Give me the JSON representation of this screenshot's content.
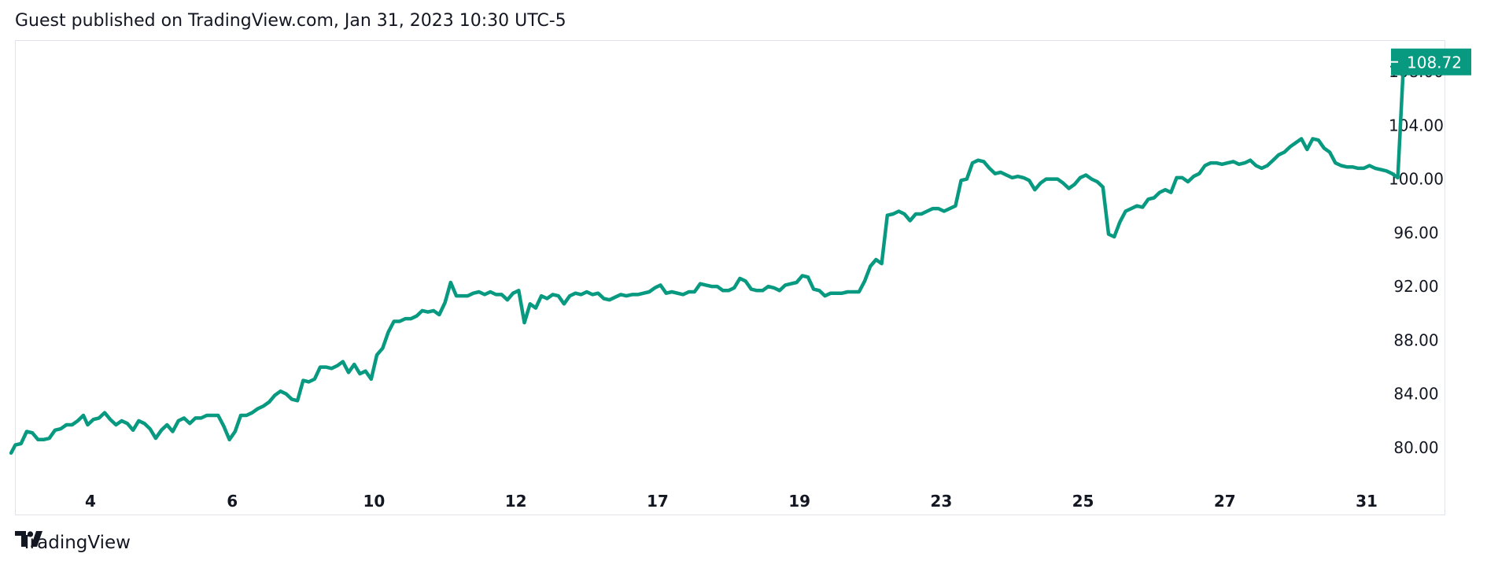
{
  "header": {
    "text": "Guest published on TradingView.com, Jan 31, 2023 10:30 UTC-5"
  },
  "footer": {
    "brand": "TradingView",
    "logo_icon": "tradingview-logo-icon"
  },
  "colors": {
    "line": "#089981",
    "price_label_bg": "#089981",
    "border": "#e0e3eb",
    "text": "#131722"
  },
  "chart_data": {
    "type": "line",
    "title": "",
    "xlabel": "",
    "ylabel": "",
    "ylim": [
      77.5,
      110
    ],
    "y_ticks": [
      "80.00",
      "84.00",
      "88.00",
      "92.00",
      "96.00",
      "100.00",
      "104.00",
      "108.00"
    ],
    "x_ticks": [
      {
        "label": "4",
        "x": 9
      },
      {
        "label": "6",
        "x": 19
      },
      {
        "label": "10",
        "x": 29
      },
      {
        "label": "12",
        "x": 39
      },
      {
        "label": "17",
        "x": 49
      },
      {
        "label": "19",
        "x": 59
      },
      {
        "label": "23",
        "x": 69
      },
      {
        "label": "25",
        "x": 79
      },
      {
        "label": "27",
        "x": 89
      },
      {
        "label": "31",
        "x": 99
      }
    ],
    "last_price": "108.72",
    "series": [
      {
        "values": [
          [
            3.4,
            79.6
          ],
          [
            3.7,
            80.2
          ],
          [
            4.1,
            80.3
          ],
          [
            4.5,
            81.2
          ],
          [
            4.9,
            81.1
          ],
          [
            5.3,
            80.6
          ],
          [
            5.7,
            80.6
          ],
          [
            6.1,
            80.7
          ],
          [
            6.5,
            81.3
          ],
          [
            6.9,
            81.4
          ],
          [
            7.3,
            81.7
          ],
          [
            7.7,
            81.7
          ],
          [
            8.1,
            82.0
          ],
          [
            8.5,
            82.4
          ],
          [
            8.8,
            81.7
          ],
          [
            9.2,
            82.1
          ],
          [
            9.6,
            82.2
          ],
          [
            10.0,
            82.6
          ],
          [
            10.4,
            82.1
          ],
          [
            10.8,
            81.7
          ],
          [
            11.2,
            82.0
          ],
          [
            11.6,
            81.8
          ],
          [
            12.0,
            81.3
          ],
          [
            12.4,
            82.0
          ],
          [
            12.8,
            81.8
          ],
          [
            13.2,
            81.4
          ],
          [
            13.6,
            80.7
          ],
          [
            14.0,
            81.3
          ],
          [
            14.4,
            81.7
          ],
          [
            14.8,
            81.2
          ],
          [
            15.2,
            82.0
          ],
          [
            15.6,
            82.2
          ],
          [
            16.0,
            81.8
          ],
          [
            16.4,
            82.2
          ],
          [
            16.8,
            82.2
          ],
          [
            17.2,
            82.4
          ],
          [
            17.6,
            82.4
          ],
          [
            18.0,
            82.4
          ],
          [
            18.4,
            81.6
          ],
          [
            18.8,
            80.6
          ],
          [
            19.2,
            81.2
          ],
          [
            19.6,
            82.4
          ],
          [
            20.0,
            82.4
          ],
          [
            20.4,
            82.6
          ],
          [
            20.8,
            82.9
          ],
          [
            21.2,
            83.1
          ],
          [
            21.6,
            83.4
          ],
          [
            22.0,
            83.9
          ],
          [
            22.4,
            84.2
          ],
          [
            22.8,
            84.0
          ],
          [
            23.2,
            83.6
          ],
          [
            23.6,
            83.5
          ],
          [
            24.0,
            85.0
          ],
          [
            24.4,
            84.9
          ],
          [
            24.8,
            85.1
          ],
          [
            25.2,
            86.0
          ],
          [
            25.6,
            86.0
          ],
          [
            26.0,
            85.9
          ],
          [
            26.4,
            86.1
          ],
          [
            26.8,
            86.4
          ],
          [
            27.2,
            85.6
          ],
          [
            27.6,
            86.2
          ],
          [
            28.0,
            85.5
          ],
          [
            28.4,
            85.7
          ],
          [
            28.8,
            85.1
          ],
          [
            29.2,
            86.9
          ],
          [
            29.6,
            87.4
          ],
          [
            30.0,
            88.6
          ],
          [
            30.4,
            89.4
          ],
          [
            30.8,
            89.4
          ],
          [
            31.2,
            89.6
          ],
          [
            31.6,
            89.6
          ],
          [
            32.0,
            89.8
          ],
          [
            32.4,
            90.2
          ],
          [
            32.8,
            90.1
          ],
          [
            33.2,
            90.2
          ],
          [
            33.6,
            89.9
          ],
          [
            34.0,
            90.8
          ],
          [
            34.4,
            92.3
          ],
          [
            34.8,
            91.3
          ],
          [
            35.2,
            91.3
          ],
          [
            35.6,
            91.3
          ],
          [
            36.0,
            91.5
          ],
          [
            36.4,
            91.6
          ],
          [
            36.8,
            91.4
          ],
          [
            37.2,
            91.6
          ],
          [
            37.6,
            91.4
          ],
          [
            38.0,
            91.4
          ],
          [
            38.4,
            91.0
          ],
          [
            38.8,
            91.5
          ],
          [
            39.2,
            91.7
          ],
          [
            39.6,
            89.3
          ],
          [
            40.0,
            90.7
          ],
          [
            40.4,
            90.4
          ],
          [
            40.8,
            91.3
          ],
          [
            41.2,
            91.1
          ],
          [
            41.6,
            91.4
          ],
          [
            42.0,
            91.3
          ],
          [
            42.4,
            90.7
          ],
          [
            42.8,
            91.3
          ],
          [
            43.2,
            91.5
          ],
          [
            43.6,
            91.4
          ],
          [
            44.0,
            91.6
          ],
          [
            44.4,
            91.4
          ],
          [
            44.8,
            91.5
          ],
          [
            45.2,
            91.1
          ],
          [
            45.6,
            91.0
          ],
          [
            46.0,
            91.2
          ],
          [
            46.4,
            91.4
          ],
          [
            46.8,
            91.3
          ],
          [
            47.2,
            91.4
          ],
          [
            47.6,
            91.4
          ],
          [
            48.0,
            91.5
          ],
          [
            48.4,
            91.6
          ],
          [
            48.8,
            91.9
          ],
          [
            49.2,
            92.1
          ],
          [
            49.6,
            91.5
          ],
          [
            50.0,
            91.6
          ],
          [
            50.4,
            91.5
          ],
          [
            50.8,
            91.4
          ],
          [
            51.2,
            91.6
          ],
          [
            51.6,
            91.6
          ],
          [
            52.0,
            92.2
          ],
          [
            52.4,
            92.1
          ],
          [
            52.8,
            92.0
          ],
          [
            53.2,
            92.0
          ],
          [
            53.6,
            91.7
          ],
          [
            54.0,
            91.7
          ],
          [
            54.4,
            91.9
          ],
          [
            54.8,
            92.6
          ],
          [
            55.2,
            92.4
          ],
          [
            55.6,
            91.8
          ],
          [
            56.0,
            91.7
          ],
          [
            56.4,
            91.7
          ],
          [
            56.8,
            92.0
          ],
          [
            57.2,
            91.9
          ],
          [
            57.6,
            91.7
          ],
          [
            58.0,
            92.1
          ],
          [
            58.4,
            92.2
          ],
          [
            58.8,
            92.3
          ],
          [
            59.2,
            92.8
          ],
          [
            59.6,
            92.7
          ],
          [
            60.0,
            91.8
          ],
          [
            60.4,
            91.7
          ],
          [
            60.8,
            91.3
          ],
          [
            61.2,
            91.5
          ],
          [
            61.6,
            91.5
          ],
          [
            62.0,
            91.5
          ],
          [
            62.4,
            91.6
          ],
          [
            62.8,
            91.6
          ],
          [
            63.2,
            91.6
          ],
          [
            63.6,
            92.4
          ],
          [
            64.0,
            93.5
          ],
          [
            64.4,
            94.0
          ],
          [
            64.8,
            93.7
          ],
          [
            65.2,
            97.3
          ],
          [
            65.6,
            97.4
          ],
          [
            66.0,
            97.6
          ],
          [
            66.4,
            97.4
          ],
          [
            66.8,
            96.9
          ],
          [
            67.2,
            97.4
          ],
          [
            67.6,
            97.4
          ],
          [
            68.0,
            97.6
          ],
          [
            68.4,
            97.8
          ],
          [
            68.8,
            97.8
          ],
          [
            69.2,
            97.6
          ],
          [
            69.6,
            97.8
          ],
          [
            70.0,
            98.0
          ],
          [
            70.4,
            99.9
          ],
          [
            70.8,
            100.0
          ],
          [
            71.2,
            101.2
          ],
          [
            71.6,
            101.4
          ],
          [
            72.0,
            101.3
          ],
          [
            72.4,
            100.8
          ],
          [
            72.8,
            100.4
          ],
          [
            73.2,
            100.5
          ],
          [
            73.6,
            100.3
          ],
          [
            74.0,
            100.1
          ],
          [
            74.4,
            100.2
          ],
          [
            74.8,
            100.1
          ],
          [
            75.2,
            99.9
          ],
          [
            75.6,
            99.2
          ],
          [
            76.0,
            99.7
          ],
          [
            76.4,
            100.0
          ],
          [
            76.8,
            100.0
          ],
          [
            77.2,
            100.0
          ],
          [
            77.6,
            99.7
          ],
          [
            78.0,
            99.3
          ],
          [
            78.4,
            99.6
          ],
          [
            78.8,
            100.1
          ],
          [
            79.2,
            100.3
          ],
          [
            79.6,
            100.0
          ],
          [
            80.0,
            99.8
          ],
          [
            80.4,
            99.4
          ],
          [
            80.8,
            95.9
          ],
          [
            81.2,
            95.7
          ],
          [
            81.6,
            96.8
          ],
          [
            82.0,
            97.6
          ],
          [
            82.4,
            97.8
          ],
          [
            82.8,
            98.0
          ],
          [
            83.2,
            97.9
          ],
          [
            83.6,
            98.5
          ],
          [
            84.0,
            98.6
          ],
          [
            84.4,
            99.0
          ],
          [
            84.8,
            99.2
          ],
          [
            85.2,
            99.0
          ],
          [
            85.6,
            100.1
          ],
          [
            86.0,
            100.1
          ],
          [
            86.4,
            99.8
          ],
          [
            86.8,
            100.2
          ],
          [
            87.2,
            100.4
          ],
          [
            87.6,
            101.0
          ],
          [
            88.0,
            101.2
          ],
          [
            88.4,
            101.2
          ],
          [
            88.8,
            101.1
          ],
          [
            89.2,
            101.2
          ],
          [
            89.6,
            101.3
          ],
          [
            90.0,
            101.1
          ],
          [
            90.4,
            101.2
          ],
          [
            90.8,
            101.4
          ],
          [
            91.2,
            101.0
          ],
          [
            91.6,
            100.8
          ],
          [
            92.0,
            101.0
          ],
          [
            92.4,
            101.4
          ],
          [
            92.8,
            101.8
          ],
          [
            93.2,
            102.0
          ],
          [
            93.6,
            102.4
          ],
          [
            94.0,
            102.7
          ],
          [
            94.4,
            103.0
          ],
          [
            94.8,
            102.2
          ],
          [
            95.2,
            103.0
          ],
          [
            95.6,
            102.9
          ],
          [
            96.0,
            102.3
          ],
          [
            96.4,
            102.0
          ],
          [
            96.8,
            101.2
          ],
          [
            97.2,
            101.0
          ],
          [
            97.6,
            100.9
          ],
          [
            98.0,
            100.9
          ],
          [
            98.4,
            100.8
          ],
          [
            98.8,
            100.8
          ],
          [
            99.2,
            101.0
          ],
          [
            99.6,
            100.8
          ],
          [
            100.0,
            100.7
          ],
          [
            100.4,
            100.6
          ],
          [
            100.8,
            100.4
          ],
          [
            101.2,
            100.1
          ],
          [
            101.6,
            108.6
          ],
          [
            102.0,
            108.6
          ],
          [
            102.4,
            108.7
          ]
        ]
      }
    ]
  }
}
